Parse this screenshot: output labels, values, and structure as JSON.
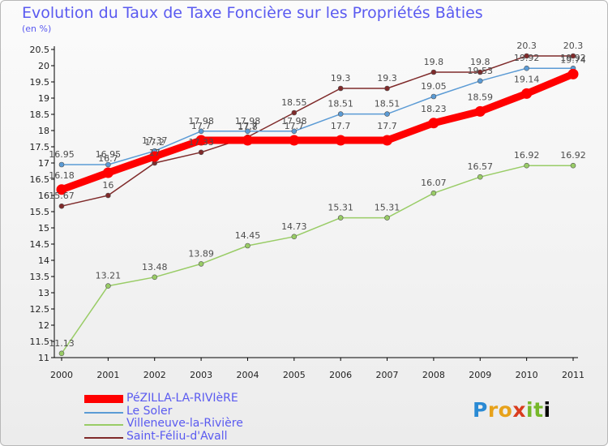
{
  "title": "Evolution du Taux de Taxe Foncière sur les Propriétés Bâties",
  "subtitle": "(en %)",
  "logo": "Proxiti",
  "chart_data": {
    "type": "line",
    "title": "Evolution du Taux de Taxe Foncière sur les Propriétés Bâties",
    "ylabel": "(en %)",
    "xlabel": "",
    "x": [
      "2000",
      "2001",
      "2002",
      "2003",
      "2004",
      "2005",
      "2006",
      "2007",
      "2008",
      "2009",
      "2010",
      "2011"
    ],
    "ylim": [
      11,
      20.5
    ],
    "yticks": [
      "11",
      "11.5",
      "12",
      "12.5",
      "13",
      "13.5",
      "14",
      "14.5",
      "15",
      "15.5",
      "16",
      "16.5",
      "17",
      "17.5",
      "18",
      "18.5",
      "19",
      "19.5",
      "20",
      "20.5"
    ],
    "grid": false,
    "legend_position": "bottom-left",
    "series": [
      {
        "name": "PéZILLA-LA-RIVIèRE",
        "color": "#ff0000",
        "values": [
          16.18,
          16.7,
          17.2,
          17.7,
          17.7,
          17.7,
          17.7,
          17.7,
          18.23,
          18.59,
          19.14,
          19.74
        ],
        "labels": [
          "16.18",
          "16.7",
          "17.2",
          "17.7",
          "17.7",
          "17.7",
          "17.7",
          "17.7",
          "18.23",
          "18.59",
          "19.14",
          "19.74"
        ]
      },
      {
        "name": "Le Soler",
        "color": "#5b9bd5",
        "values": [
          16.95,
          16.95,
          17.37,
          17.98,
          17.98,
          17.98,
          18.51,
          18.51,
          19.05,
          19.53,
          19.92,
          19.92
        ],
        "labels": [
          "16.95",
          "16.95",
          "17.37",
          "17.98",
          "17.98",
          "17.98",
          "18.51",
          "18.51",
          "19.05",
          "19.53",
          "19.92",
          "19.92"
        ]
      },
      {
        "name": "Villeneuve-la-Rivière",
        "color": "#99cc66",
        "values": [
          11.13,
          13.21,
          13.48,
          13.89,
          14.45,
          14.73,
          15.31,
          15.31,
          16.07,
          16.57,
          16.92,
          16.92
        ],
        "labels": [
          "11.13",
          "13.21",
          "13.48",
          "13.89",
          "14.45",
          "14.73",
          "15.31",
          "15.31",
          "16.07",
          "16.57",
          "16.92",
          "16.92"
        ]
      },
      {
        "name": "Saint-Féliu-d'Avall",
        "color": "#7f2a2a",
        "values": [
          15.67,
          16,
          17,
          17.33,
          17.8,
          18.55,
          19.3,
          19.3,
          19.8,
          19.8,
          20.3,
          20.3
        ],
        "labels": [
          "15.67",
          "16",
          "17",
          "17.33",
          "17.8",
          "18.55",
          "19.3",
          "19.3",
          "19.8",
          "19.8",
          "20.3",
          "20.3"
        ]
      }
    ]
  }
}
